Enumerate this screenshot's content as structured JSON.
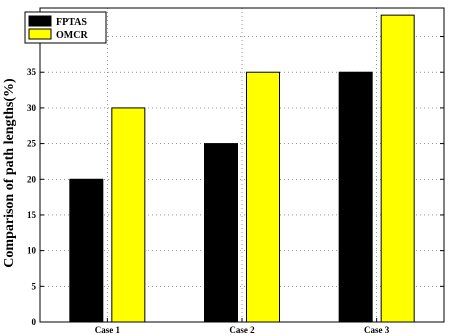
{
  "chart_data": {
    "type": "bar",
    "title": "",
    "xlabel": "",
    "ylabel": "Comparison of path lengths(%)",
    "categories": [
      "Case 1",
      "Case 2",
      "Case 3"
    ],
    "series": [
      {
        "name": "FPTAS",
        "values": [
          20,
          25,
          35
        ],
        "color": "#000000"
      },
      {
        "name": "OMCR",
        "values": [
          30,
          35,
          43
        ],
        "color": "#ffff00"
      }
    ],
    "ylim": [
      0,
      44
    ],
    "yticks": [
      0,
      5,
      10,
      15,
      20,
      25,
      30,
      35,
      40
    ],
    "grid": true,
    "legend_position": "top-left"
  }
}
